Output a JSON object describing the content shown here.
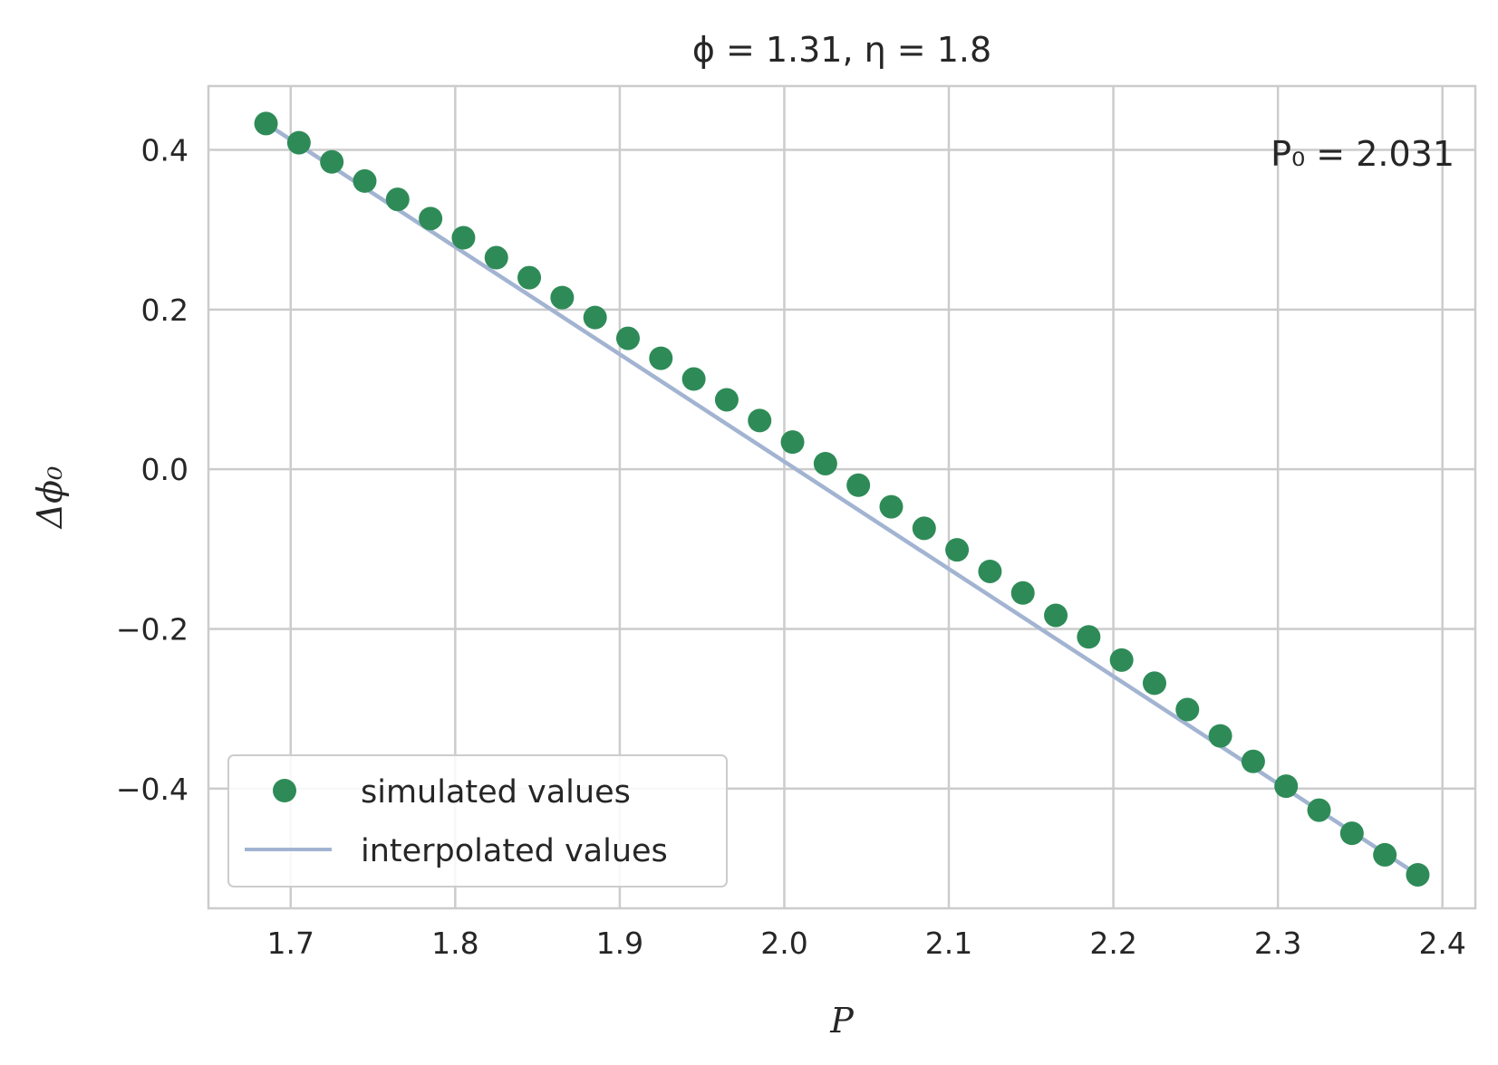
{
  "chart_data": {
    "type": "scatter",
    "title": "ϕ = 1.31,  η = 1.8",
    "xlabel": "P",
    "ylabel": "Δϕ₀",
    "xlim": [
      1.65,
      2.42
    ],
    "ylim": [
      -0.55,
      0.48
    ],
    "xticks": [
      1.7,
      1.8,
      1.9,
      2.0,
      2.1,
      2.2,
      2.3,
      2.4
    ],
    "xtick_labels": [
      "1.7",
      "1.8",
      "1.9",
      "2.0",
      "2.1",
      "2.2",
      "2.3",
      "2.4"
    ],
    "yticks": [
      -0.4,
      -0.2,
      0.0,
      0.2,
      0.4
    ],
    "ytick_labels": [
      "−0.4",
      "−0.2",
      "0.0",
      "0.2",
      "0.4"
    ],
    "grid": true,
    "legend_position": "lower-left",
    "annotation": "P₀ = 2.031",
    "series": [
      {
        "name": "simulated values",
        "kind": "markers",
        "color": "#2e8b57",
        "x": [
          1.685,
          1.705,
          1.725,
          1.745,
          1.765,
          1.785,
          1.805,
          1.825,
          1.845,
          1.865,
          1.885,
          1.905,
          1.925,
          1.945,
          1.965,
          1.985,
          2.005,
          2.025,
          2.045,
          2.065,
          2.085,
          2.105,
          2.125,
          2.145,
          2.165,
          2.185,
          2.205,
          2.225,
          2.245,
          2.265,
          2.285,
          2.305,
          2.325,
          2.345,
          2.365,
          2.385
        ],
        "y": [
          0.433,
          0.409,
          0.385,
          0.361,
          0.338,
          0.314,
          0.29,
          0.265,
          0.24,
          0.215,
          0.19,
          0.164,
          0.139,
          0.113,
          0.087,
          0.061,
          0.034,
          0.007,
          -0.02,
          -0.047,
          -0.074,
          -0.101,
          -0.128,
          -0.155,
          -0.183,
          -0.21,
          -0.239,
          -0.268,
          -0.301,
          -0.334,
          -0.366,
          -0.397,
          -0.427,
          -0.456,
          -0.483,
          -0.508
        ]
      },
      {
        "name": "interpolated values",
        "kind": "line",
        "color": "#a2b4d1",
        "x": [
          1.685,
          2.385
        ],
        "y": [
          0.433,
          -0.508
        ]
      }
    ]
  }
}
